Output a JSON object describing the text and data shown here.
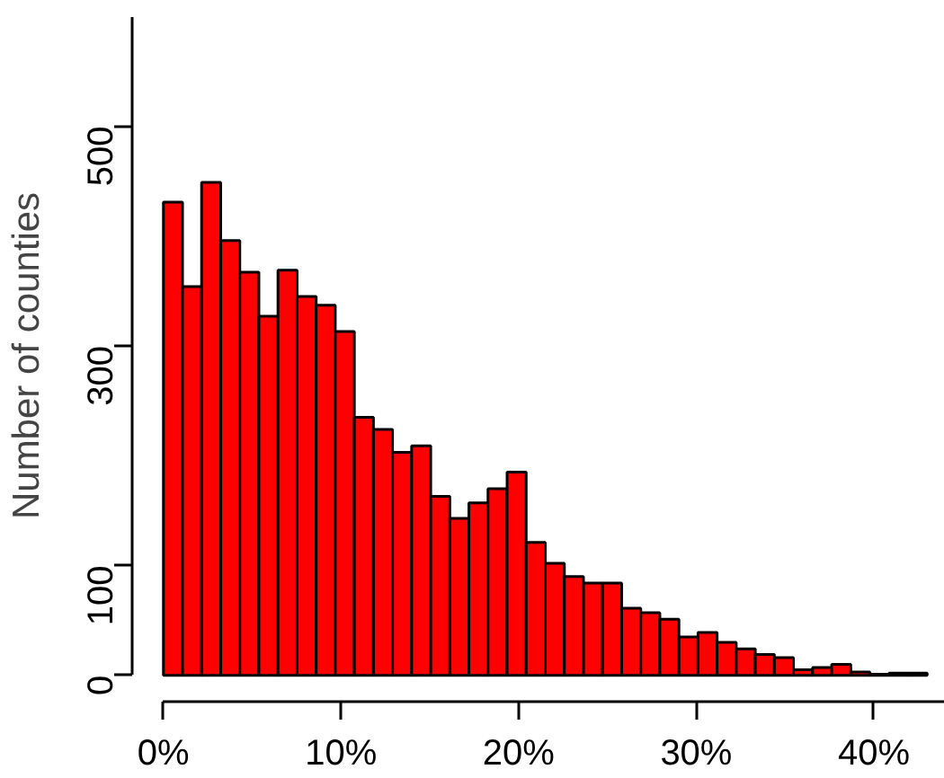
{
  "chart_data": {
    "type": "histogram",
    "ylabel": "Number of counties",
    "color": "#ff0000",
    "bins": [
      0,
      1.075,
      2.15,
      3.225,
      4.3,
      5.375,
      6.45,
      7.525,
      8.6,
      9.675,
      10.75,
      11.825,
      12.9,
      13.975,
      15.05,
      16.125,
      17.2,
      18.275,
      19.35,
      20.425,
      21.5,
      22.575,
      23.65,
      24.725,
      25.8,
      26.875,
      27.95,
      29.025,
      30.1,
      31.175,
      32.25,
      33.325,
      34.4,
      35.475,
      36.55,
      37.625,
      38.7,
      39.775,
      40.85,
      41.925,
      43
    ],
    "values": [
      431,
      354,
      449,
      396,
      367,
      327,
      369,
      345,
      337,
      313,
      235,
      224,
      203,
      209,
      163,
      143,
      157,
      170,
      185,
      121,
      102,
      90,
      84,
      84,
      61,
      57,
      51,
      35,
      39,
      30,
      24,
      19,
      16,
      5,
      7,
      10,
      3,
      1,
      2,
      2
    ],
    "xlim": [
      0,
      44
    ],
    "ylim": [
      0,
      600
    ],
    "xticks": [
      {
        "value": 0,
        "label": "0%"
      },
      {
        "value": 10,
        "label": "10%"
      },
      {
        "value": 20,
        "label": "20%"
      },
      {
        "value": 30,
        "label": "30%"
      },
      {
        "value": 40,
        "label": "40%"
      }
    ],
    "yticks": [
      0,
      100,
      300,
      500
    ],
    "grid": false
  }
}
